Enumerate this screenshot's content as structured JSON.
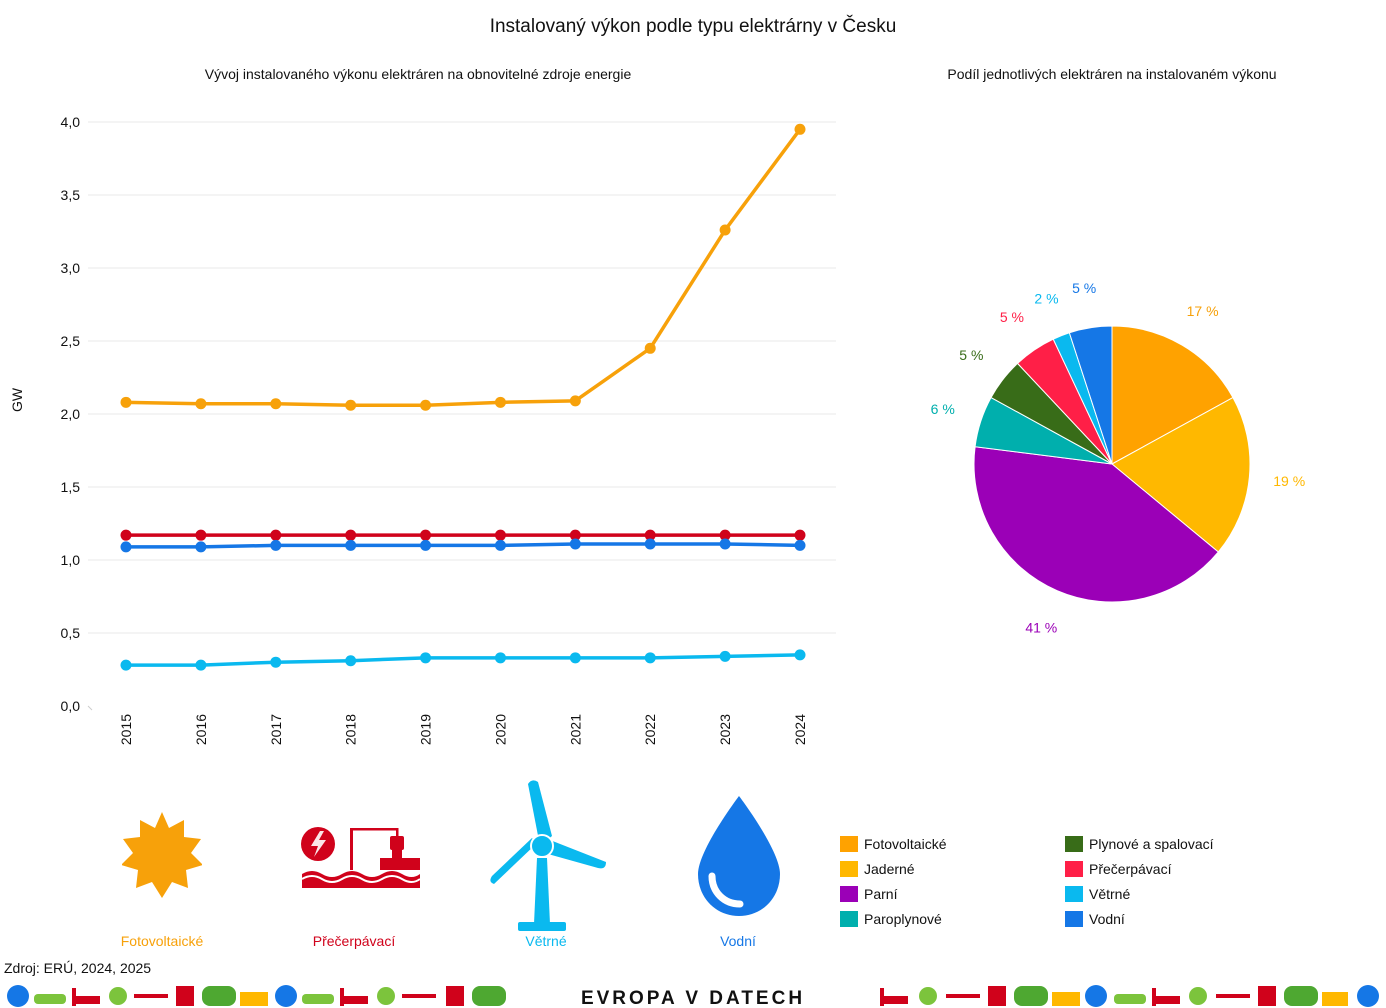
{
  "title": "Instalovaný výkon podle typu elektrárny v Česku",
  "source": "Zdroj: ERÚ, 2024, 2025",
  "brand": "EVROPA V DATECH",
  "chart_data": [
    {
      "type": "line",
      "title": "Vývoj instalovaného výkonu elektráren na obnovitelné zdroje energie",
      "xlabel": "",
      "ylabel": "GW",
      "ylim": [
        0,
        4
      ],
      "yticks": [
        "0,0",
        "0,5",
        "1,0",
        "1,5",
        "2,0",
        "2,5",
        "3,0",
        "3,5",
        "4,0"
      ],
      "grid": true,
      "categories": [
        "2015",
        "2016",
        "2017",
        "2018",
        "2019",
        "2020",
        "2021",
        "2022",
        "2023",
        "2024"
      ],
      "series": [
        {
          "name": "Fotovoltaické",
          "color": "#f7a10a",
          "values": [
            2.08,
            2.07,
            2.07,
            2.06,
            2.06,
            2.08,
            2.09,
            2.45,
            3.26,
            3.95
          ]
        },
        {
          "name": "Přečerpávací",
          "color": "#d0021b",
          "values": [
            1.17,
            1.17,
            1.17,
            1.17,
            1.17,
            1.17,
            1.17,
            1.17,
            1.17,
            1.17
          ]
        },
        {
          "name": "Vodní",
          "color": "#1577e6",
          "values": [
            1.09,
            1.09,
            1.1,
            1.1,
            1.1,
            1.1,
            1.11,
            1.11,
            1.11,
            1.1
          ]
        },
        {
          "name": "Větrné",
          "color": "#0ab9ef",
          "values": [
            0.28,
            0.28,
            0.3,
            0.31,
            0.33,
            0.33,
            0.33,
            0.33,
            0.34,
            0.35
          ]
        }
      ]
    },
    {
      "type": "pie",
      "title": "Podíl jednotlivých elektráren na instalovaném výkonu",
      "slices": [
        {
          "name": "Fotovoltaické",
          "value": 17,
          "label": "17 %",
          "color": "#ffa200"
        },
        {
          "name": "Jaderné",
          "value": 19,
          "label": "19 %",
          "color": "#ffb800"
        },
        {
          "name": "Parní",
          "value": 41,
          "label": "41 %",
          "color": "#9b00b7"
        },
        {
          "name": "Paroplynové",
          "value": 6,
          "label": "6 %",
          "color": "#00afad"
        },
        {
          "name": "Plynové a spalovací",
          "value": 5,
          "label": "5 %",
          "color": "#386c18"
        },
        {
          "name": "Přečerpávací",
          "value": 5,
          "label": "5 %",
          "color": "#ff1f47"
        },
        {
          "name": "Větrné",
          "value": 2,
          "label": "2 %",
          "color": "#0ab9ef"
        },
        {
          "name": "Vodní",
          "value": 5,
          "label": "5 %",
          "color": "#1577e6"
        }
      ],
      "label_colors": [
        "#f7a10a",
        "#ffb800",
        "#9b00b7",
        "#00afad",
        "#386c18",
        "#ff1f47",
        "#0ab9ef",
        "#1577e6"
      ]
    }
  ],
  "icons": [
    {
      "name": "sun-icon",
      "label": "Fotovoltaické",
      "color": "#f7a10a"
    },
    {
      "name": "pumped-storage-icon",
      "label": "Přečerpávací",
      "color": "#d0021b"
    },
    {
      "name": "wind-turbine-icon",
      "label": "Větrné",
      "color": "#0ab9ef"
    },
    {
      "name": "water-drop-icon",
      "label": "Vodní",
      "color": "#1577e6"
    }
  ],
  "legend": {
    "items": [
      {
        "label": "Fotovoltaické",
        "color": "#ffa200"
      },
      {
        "label": "Jaderné",
        "color": "#ffb800"
      },
      {
        "label": "Parní",
        "color": "#9b00b7"
      },
      {
        "label": "Paroplynové",
        "color": "#00afad"
      },
      {
        "label": "Plynové a spalovací",
        "color": "#386c18"
      },
      {
        "label": "Přečerpávací",
        "color": "#ff1f47"
      },
      {
        "label": "Větrné",
        "color": "#0ab9ef"
      },
      {
        "label": "Vodní",
        "color": "#1577e6"
      }
    ]
  }
}
